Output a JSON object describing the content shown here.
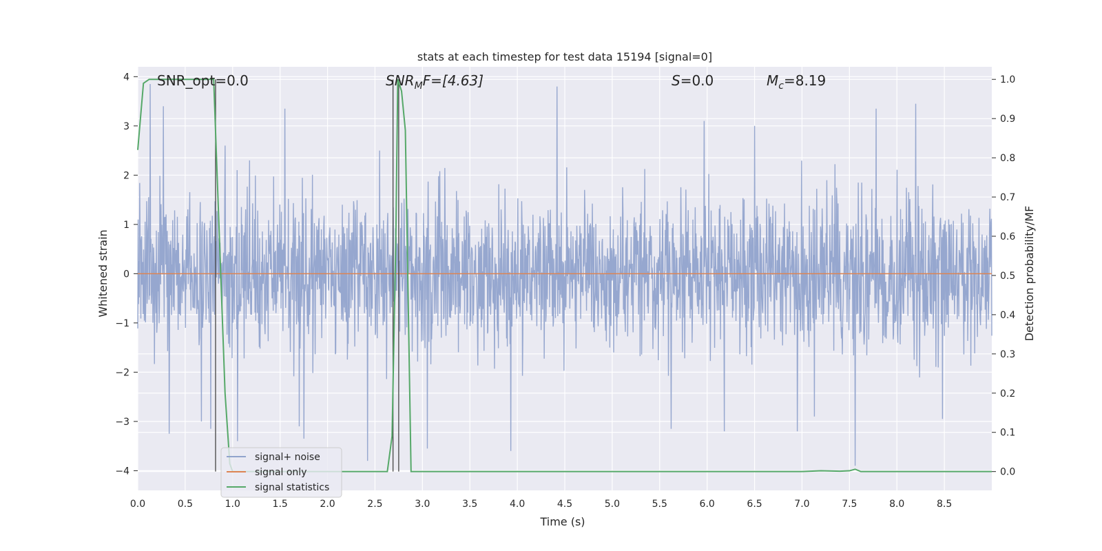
{
  "chart_data": {
    "type": "line",
    "title": "stats at each timestep for test data 15194 [signal=0]",
    "xlabel": "Time (s)",
    "ylabel_left": "Whitened strain",
    "ylabel_right": "Detection probability/MF",
    "xlim": [
      0.0,
      9.0
    ],
    "ylim_left": [
      -4.4,
      4.2
    ],
    "ylim_right": [
      -0.048,
      1.032
    ],
    "x_ticks": [
      0.0,
      0.5,
      1.0,
      1.5,
      2.0,
      2.5,
      3.0,
      3.5,
      4.0,
      4.5,
      5.0,
      5.5,
      6.0,
      6.5,
      7.0,
      7.5,
      8.0,
      8.5
    ],
    "x_tick_labels": [
      "0.0",
      "0.5",
      "1.0",
      "1.5",
      "2.0",
      "2.5",
      "3.0",
      "3.5",
      "4.0",
      "4.5",
      "5.0",
      "5.5",
      "6.0",
      "6.5",
      "7.0",
      "7.5",
      "8.0",
      "8.5"
    ],
    "y_left_ticks": [
      -4,
      -3,
      -2,
      -1,
      0,
      1,
      2,
      3,
      4
    ],
    "y_left_tick_labels": [
      "−4",
      "−3",
      "−2",
      "−1",
      "0",
      "1",
      "2",
      "3",
      "4"
    ],
    "y_right_ticks": [
      0.0,
      0.1,
      0.2,
      0.3,
      0.4,
      0.5,
      0.6,
      0.7,
      0.8,
      0.9,
      1.0
    ],
    "y_right_tick_labels": [
      "0.0",
      "0.1",
      "0.2",
      "0.3",
      "0.4",
      "0.5",
      "0.6",
      "0.7",
      "0.8",
      "0.9",
      "1.0"
    ],
    "grid": true,
    "legend_position": "lower-left",
    "annotations": {
      "snr_opt": "SNR_opt=0.0",
      "snr_mf_main": "SNR",
      "snr_mf_sub": "M",
      "snr_mf_rest": "F=[4.63]",
      "s_main": "S",
      "s_rest": "=0.0",
      "mc_main": "M",
      "mc_sub": "c",
      "mc_rest": "=8.19"
    },
    "vlines_x": [
      0.82,
      2.69,
      2.75
    ],
    "series": [
      {
        "name": "signal+ noise",
        "axis": "left",
        "color": "#91a3cc",
        "description": "whitened strain noise, roughly within -2.5..3.0 with spikes to ~3.8 and ~-3.8",
        "spikes": [
          {
            "x": 0.13,
            "y": 3.85
          },
          {
            "x": 0.27,
            "y": 3.4
          },
          {
            "x": 0.33,
            "y": -3.25
          },
          {
            "x": 0.67,
            "y": -3.0
          },
          {
            "x": 0.77,
            "y": -3.15
          },
          {
            "x": 0.92,
            "y": 2.6
          },
          {
            "x": 1.05,
            "y": -3.4
          },
          {
            "x": 1.18,
            "y": 2.3
          },
          {
            "x": 1.55,
            "y": 3.35
          },
          {
            "x": 1.7,
            "y": -3.1
          },
          {
            "x": 1.75,
            "y": -3.35
          },
          {
            "x": 2.42,
            "y": -3.8
          },
          {
            "x": 2.55,
            "y": 2.5
          },
          {
            "x": 3.05,
            "y": -3.55
          },
          {
            "x": 3.93,
            "y": -3.6
          },
          {
            "x": 4.42,
            "y": 3.8
          },
          {
            "x": 5.62,
            "y": -3.15
          },
          {
            "x": 5.97,
            "y": 3.1
          },
          {
            "x": 6.18,
            "y": -3.2
          },
          {
            "x": 6.5,
            "y": 3.0
          },
          {
            "x": 6.95,
            "y": -3.2
          },
          {
            "x": 7.13,
            "y": -2.9
          },
          {
            "x": 7.56,
            "y": -3.9
          },
          {
            "x": 7.78,
            "y": 3.35
          },
          {
            "x": 8.2,
            "y": 3.45
          },
          {
            "x": 8.48,
            "y": -2.95
          }
        ]
      },
      {
        "name": "signal only",
        "axis": "left",
        "color": "#dd8452",
        "x": [
          0.0,
          9.0
        ],
        "y": [
          0.0,
          0.0
        ]
      },
      {
        "name": "signal statistics",
        "axis": "right",
        "color": "#55a868",
        "x": [
          0.0,
          0.06,
          0.12,
          0.2,
          0.78,
          0.8,
          0.86,
          0.92,
          0.97,
          1.0,
          2.0,
          2.63,
          2.68,
          2.72,
          2.74,
          2.78,
          2.82,
          2.88,
          3.0,
          6.5,
          7.0,
          7.2,
          7.4,
          7.5,
          7.56,
          7.62,
          7.8,
          8.5,
          9.0
        ],
        "y": [
          0.82,
          0.99,
          1.0,
          1.0,
          1.0,
          1.0,
          0.6,
          0.2,
          0.02,
          0.0,
          0.0,
          0.0,
          0.09,
          0.6,
          1.0,
          0.97,
          0.87,
          0.0,
          0.0,
          0.0,
          0.0,
          0.002,
          0.001,
          0.002,
          0.006,
          0.0,
          0.0,
          0.0,
          0.0
        ]
      }
    ]
  }
}
